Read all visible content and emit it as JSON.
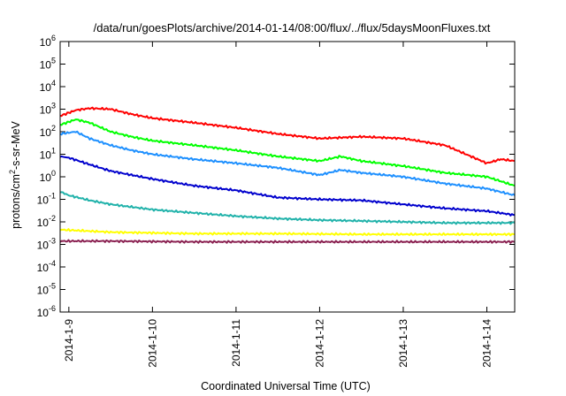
{
  "chart_data": {
    "type": "line",
    "title": "/data/run/goesPlots/archive/2014-01-14/08:00/flux/../flux/5daysMoonFluxes.txt",
    "xlabel": "Coordinated Universal Time (UTC)",
    "ylabel": "protons/cm²-s-sr-MeV",
    "ylabel_parts": {
      "pre": "protons/cm",
      "sup": "2",
      "post": "-s-sr-MeV"
    },
    "y_scale": "log",
    "ylim": [
      1e-06,
      1000000.0
    ],
    "y_ticks": [
      {
        "value": -6,
        "base": "10",
        "exp": "-6"
      },
      {
        "value": -5,
        "base": "10",
        "exp": "-5"
      },
      {
        "value": -4,
        "base": "10",
        "exp": "-4"
      },
      {
        "value": -3,
        "base": "10",
        "exp": "-3"
      },
      {
        "value": -2,
        "base": "10",
        "exp": "-2"
      },
      {
        "value": -1,
        "base": "10",
        "exp": "-1"
      },
      {
        "value": 0,
        "base": "10",
        "exp": "0"
      },
      {
        "value": 1,
        "base": "10",
        "exp": "1"
      },
      {
        "value": 2,
        "base": "10",
        "exp": "2"
      },
      {
        "value": 3,
        "base": "10",
        "exp": "3"
      },
      {
        "value": 4,
        "base": "10",
        "exp": "4"
      },
      {
        "value": 5,
        "base": "10",
        "exp": "5"
      },
      {
        "value": 6,
        "base": "10",
        "exp": "6"
      }
    ],
    "x_ticks": [
      {
        "x": "2014-01-09",
        "label": "2014-1-9"
      },
      {
        "x": "2014-01-10",
        "label": "2014-1-10"
      },
      {
        "x": "2014-01-11",
        "label": "2014-1-11"
      },
      {
        "x": "2014-01-12",
        "label": "2014-1-12"
      },
      {
        "x": "2014-01-13",
        "label": "2014-1-13"
      },
      {
        "x": "2014-01-14",
        "label": "2014-1-14"
      }
    ],
    "xlim": [
      "2014-01-08T21:30",
      "2014-01-14T08:00"
    ],
    "grid": false,
    "legend": "none",
    "series": [
      {
        "color": "#ff0000",
        "x": [
          "2014-01-08T21:30",
          "2014-01-09T02:00",
          "2014-01-09T06:00",
          "2014-01-09T12:00",
          "2014-01-09T18:00",
          "2014-01-10T00:00",
          "2014-01-10T12:00",
          "2014-01-11T00:00",
          "2014-01-11T12:00",
          "2014-01-12T00:00",
          "2014-01-12T12:00",
          "2014-01-13T00:00",
          "2014-01-13T12:00",
          "2014-01-13T18:00",
          "2014-01-14T00:00",
          "2014-01-14T04:00",
          "2014-01-14T08:00"
        ],
        "y": [
          500,
          900,
          1100,
          1000,
          600,
          400,
          250,
          150,
          80,
          50,
          60,
          50,
          25,
          10,
          4,
          6,
          5
        ]
      },
      {
        "color": "#00ff00",
        "x": [
          "2014-01-08T21:30",
          "2014-01-09T02:00",
          "2014-01-09T06:00",
          "2014-01-09T12:00",
          "2014-01-09T18:00",
          "2014-01-10T00:00",
          "2014-01-10T12:00",
          "2014-01-11T00:00",
          "2014-01-11T12:00",
          "2014-01-12T00:00",
          "2014-01-12T06:00",
          "2014-01-12T12:00",
          "2014-01-13T00:00",
          "2014-01-13T12:00",
          "2014-01-14T00:00",
          "2014-01-14T08:00"
        ],
        "y": [
          200,
          350,
          250,
          100,
          60,
          40,
          25,
          15,
          8,
          5,
          8,
          5,
          3,
          1.5,
          1,
          0.4
        ]
      },
      {
        "color": "#1e90ff",
        "x": [
          "2014-01-08T21:30",
          "2014-01-09T02:00",
          "2014-01-09T06:00",
          "2014-01-09T12:00",
          "2014-01-09T18:00",
          "2014-01-10T00:00",
          "2014-01-10T12:00",
          "2014-01-11T00:00",
          "2014-01-11T12:00",
          "2014-01-12T00:00",
          "2014-01-12T06:00",
          "2014-01-12T12:00",
          "2014-01-13T00:00",
          "2014-01-13T12:00",
          "2014-01-14T00:00",
          "2014-01-14T08:00"
        ],
        "y": [
          80,
          100,
          50,
          25,
          15,
          10,
          6,
          4,
          2.5,
          1.2,
          2,
          1.5,
          1,
          0.5,
          0.3,
          0.15
        ]
      },
      {
        "color": "#0000cd",
        "x": [
          "2014-01-08T21:30",
          "2014-01-09T00:00",
          "2014-01-09T06:00",
          "2014-01-09T12:00",
          "2014-01-10T00:00",
          "2014-01-10T12:00",
          "2014-01-11T00:00",
          "2014-01-11T12:00",
          "2014-01-12T00:00",
          "2014-01-12T12:00",
          "2014-01-13T00:00",
          "2014-01-13T12:00",
          "2014-01-14T00:00",
          "2014-01-14T08:00"
        ],
        "y": [
          8,
          7,
          3.5,
          1.8,
          0.8,
          0.4,
          0.25,
          0.12,
          0.1,
          0.09,
          0.06,
          0.04,
          0.03,
          0.02
        ]
      },
      {
        "color": "#20b2aa",
        "x": [
          "2014-01-08T21:30",
          "2014-01-09T00:00",
          "2014-01-09T06:00",
          "2014-01-09T12:00",
          "2014-01-10T00:00",
          "2014-01-10T12:00",
          "2014-01-11T00:00",
          "2014-01-11T12:00",
          "2014-01-12T00:00",
          "2014-01-12T12:00",
          "2014-01-13T00:00",
          "2014-01-13T12:00",
          "2014-01-14T00:00",
          "2014-01-14T08:00"
        ],
        "y": [
          0.22,
          0.15,
          0.09,
          0.06,
          0.035,
          0.025,
          0.018,
          0.014,
          0.012,
          0.011,
          0.01,
          0.009,
          0.009,
          0.009
        ]
      },
      {
        "color": "#ffff00",
        "x": [
          "2014-01-08T21:30",
          "2014-01-09T12:00",
          "2014-01-10T12:00",
          "2014-01-11T12:00",
          "2014-01-12T12:00",
          "2014-01-13T12:00",
          "2014-01-14T08:00"
        ],
        "y": [
          0.0045,
          0.0035,
          0.003,
          0.003,
          0.0028,
          0.0028,
          0.0028
        ]
      },
      {
        "color": "#8b2252",
        "x": [
          "2014-01-08T21:30",
          "2014-01-09T12:00",
          "2014-01-10T12:00",
          "2014-01-11T12:00",
          "2014-01-12T12:00",
          "2014-01-13T12:00",
          "2014-01-14T08:00"
        ],
        "y": [
          0.0014,
          0.0014,
          0.0013,
          0.0013,
          0.0013,
          0.0013,
          0.0013
        ]
      }
    ]
  }
}
